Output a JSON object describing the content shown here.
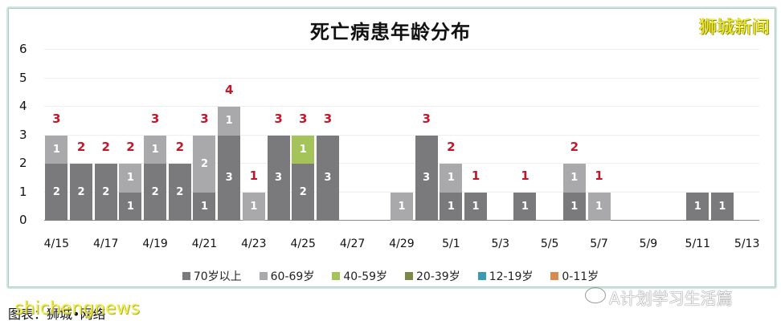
{
  "chart_data": {
    "type": "bar",
    "stacked": true,
    "title": "死亡病患年龄分布",
    "xlabel": "",
    "ylabel": "",
    "ylim": [
      0,
      6
    ],
    "yticks": [
      "0",
      "1",
      "2",
      "3",
      "4",
      "5",
      "6"
    ],
    "xtick_labels": [
      "4/15",
      "4/17",
      "4/19",
      "4/21",
      "4/23",
      "4/25",
      "4/27",
      "4/29",
      "5/1",
      "5/3",
      "5/5",
      "5/7",
      "5/9",
      "5/11",
      "5/13"
    ],
    "grid": true,
    "legend_position": "bottom",
    "categories": [
      "4/15",
      "4/16",
      "4/17",
      "4/18",
      "4/19",
      "4/20",
      "4/21",
      "4/22",
      "4/23",
      "4/24",
      "4/25",
      "4/26",
      "4/27",
      "4/28",
      "4/29",
      "4/30",
      "5/1",
      "5/2",
      "5/3",
      "5/4",
      "5/5",
      "5/6",
      "5/7",
      "5/8",
      "5/9",
      "5/10",
      "5/11",
      "5/12",
      "5/13"
    ],
    "series": [
      {
        "name": "70岁以上",
        "color": "#7a7a7c",
        "values": [
          2,
          2,
          2,
          1,
          2,
          2,
          1,
          3,
          0,
          3,
          2,
          3,
          0,
          0,
          0,
          3,
          1,
          1,
          0,
          1,
          0,
          1,
          0,
          0,
          0,
          0,
          1,
          1,
          0
        ]
      },
      {
        "name": "60-69岁",
        "color": "#a9a9ab",
        "values": [
          1,
          0,
          0,
          1,
          1,
          0,
          2,
          1,
          1,
          0,
          0,
          0,
          0,
          0,
          1,
          0,
          1,
          0,
          0,
          0,
          0,
          1,
          1,
          0,
          0,
          0,
          0,
          0,
          0
        ]
      },
      {
        "name": "40-59岁",
        "color": "#a4c45a",
        "values": [
          0,
          0,
          0,
          0,
          0,
          0,
          0,
          0,
          0,
          0,
          1,
          0,
          0,
          0,
          0,
          0,
          0,
          0,
          0,
          0,
          0,
          0,
          0,
          0,
          0,
          0,
          0,
          0,
          0
        ]
      },
      {
        "name": "20-39岁",
        "color": "#7a8a46",
        "values": [
          0,
          0,
          0,
          0,
          0,
          0,
          0,
          0,
          0,
          0,
          0,
          0,
          0,
          0,
          0,
          0,
          0,
          0,
          0,
          0,
          0,
          0,
          0,
          0,
          0,
          0,
          0,
          0,
          0
        ]
      },
      {
        "name": "12-19岁",
        "color": "#3c9ab0",
        "values": [
          0,
          0,
          0,
          0,
          0,
          0,
          0,
          0,
          0,
          0,
          0,
          0,
          0,
          0,
          0,
          0,
          0,
          0,
          0,
          0,
          0,
          0,
          0,
          0,
          0,
          0,
          0,
          0,
          0
        ]
      },
      {
        "name": "0-11岁",
        "color": "#d98a4e",
        "values": [
          0,
          0,
          0,
          0,
          0,
          0,
          0,
          0,
          0,
          0,
          0,
          0,
          0,
          0,
          0,
          0,
          0,
          0,
          0,
          0,
          0,
          0,
          0,
          0,
          0,
          0,
          0,
          0,
          0
        ]
      }
    ],
    "totals": [
      3,
      2,
      2,
      2,
      3,
      2,
      3,
      4,
      1,
      3,
      3,
      3,
      0,
      0,
      1,
      3,
      2,
      1,
      0,
      1,
      0,
      2,
      1,
      0,
      0,
      0,
      1,
      1,
      0
    ],
    "total_label_color": "#c0182a"
  },
  "brand": "狮城新闻",
  "footer": {
    "source": "图表：狮城•网络",
    "watermark": "shichengnews",
    "account": "A计划学习生活篇"
  }
}
